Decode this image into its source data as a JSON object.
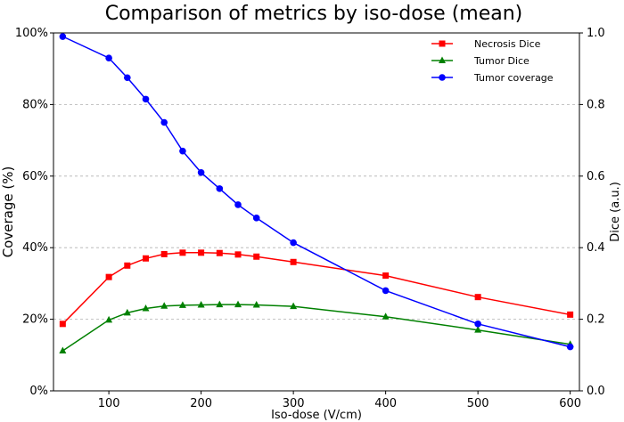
{
  "chart_data": {
    "type": "line",
    "title": "Comparison of metrics by iso-dose (mean)",
    "xlabel": "Iso-dose (V/cm)",
    "ylabel_left": "Coverage (%)",
    "ylabel_right": "Dice (a.u.)",
    "xlim": [
      40,
      610
    ],
    "ylim_left": [
      0,
      100
    ],
    "ylim_right": [
      0,
      1
    ],
    "x_ticks": [
      "100",
      "200",
      "300",
      "400",
      "500",
      "600"
    ],
    "y_ticks_left": [
      "0%",
      "20%",
      "40%",
      "60%",
      "80%",
      "100%"
    ],
    "y_ticks_right": [
      "0.0",
      "0.2",
      "0.4",
      "0.6",
      "0.8",
      "1.0"
    ],
    "grid": "horizontal dashed",
    "legend_position": "top-right",
    "x": [
      50,
      100,
      120,
      140,
      160,
      180,
      200,
      220,
      240,
      260,
      300,
      400,
      500,
      600
    ],
    "series": [
      {
        "name": "Necrosis Dice",
        "axis": "right",
        "color": "#ff0000",
        "marker": "square",
        "values": [
          0.187,
          0.318,
          0.35,
          0.37,
          0.382,
          0.386,
          0.386,
          0.385,
          0.381,
          0.375,
          0.36,
          0.322,
          0.262,
          0.213
        ]
      },
      {
        "name": "Tumor Dice",
        "axis": "right",
        "color": "#008000",
        "marker": "triangle",
        "values": [
          0.112,
          0.198,
          0.218,
          0.23,
          0.237,
          0.239,
          0.24,
          0.241,
          0.241,
          0.24,
          0.236,
          0.207,
          0.17,
          0.13
        ]
      },
      {
        "name": "Tumor coverage",
        "axis": "left",
        "color": "#0000ff",
        "marker": "circle",
        "values": [
          99,
          93,
          87.5,
          81.5,
          75,
          67,
          61,
          56.5,
          52,
          48.3,
          41.4,
          28,
          18.7,
          12.3
        ]
      }
    ]
  }
}
